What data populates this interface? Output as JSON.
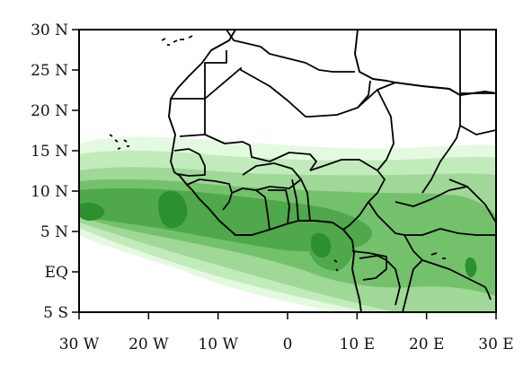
{
  "map": {
    "extent": {
      "lon_min": -30,
      "lon_max": 30,
      "lat_min": -5,
      "lat_max": 30
    },
    "lat_ticks": [
      {
        "value": 30,
        "label": "30 N"
      },
      {
        "value": 25,
        "label": "25 N"
      },
      {
        "value": 20,
        "label": "20 N"
      },
      {
        "value": 15,
        "label": "15 N"
      },
      {
        "value": 10,
        "label": "10 N"
      },
      {
        "value": 5,
        "label": "5 N"
      },
      {
        "value": 0,
        "label": "EQ"
      },
      {
        "value": -5,
        "label": "5 S"
      }
    ],
    "lon_ticks": [
      {
        "value": -30,
        "label": "30 W"
      },
      {
        "value": -20,
        "label": "20 W"
      },
      {
        "value": -10,
        "label": "10 W"
      },
      {
        "value": 0,
        "label": "0"
      },
      {
        "value": 10,
        "label": "10 E"
      },
      {
        "value": 20,
        "label": "20 E"
      },
      {
        "value": 30,
        "label": "30 E"
      }
    ],
    "shading_colors": [
      "#e4fae0",
      "#c2ebbb",
      "#9fd897",
      "#74c16c",
      "#4fa84a",
      "#2d9030"
    ]
  }
}
